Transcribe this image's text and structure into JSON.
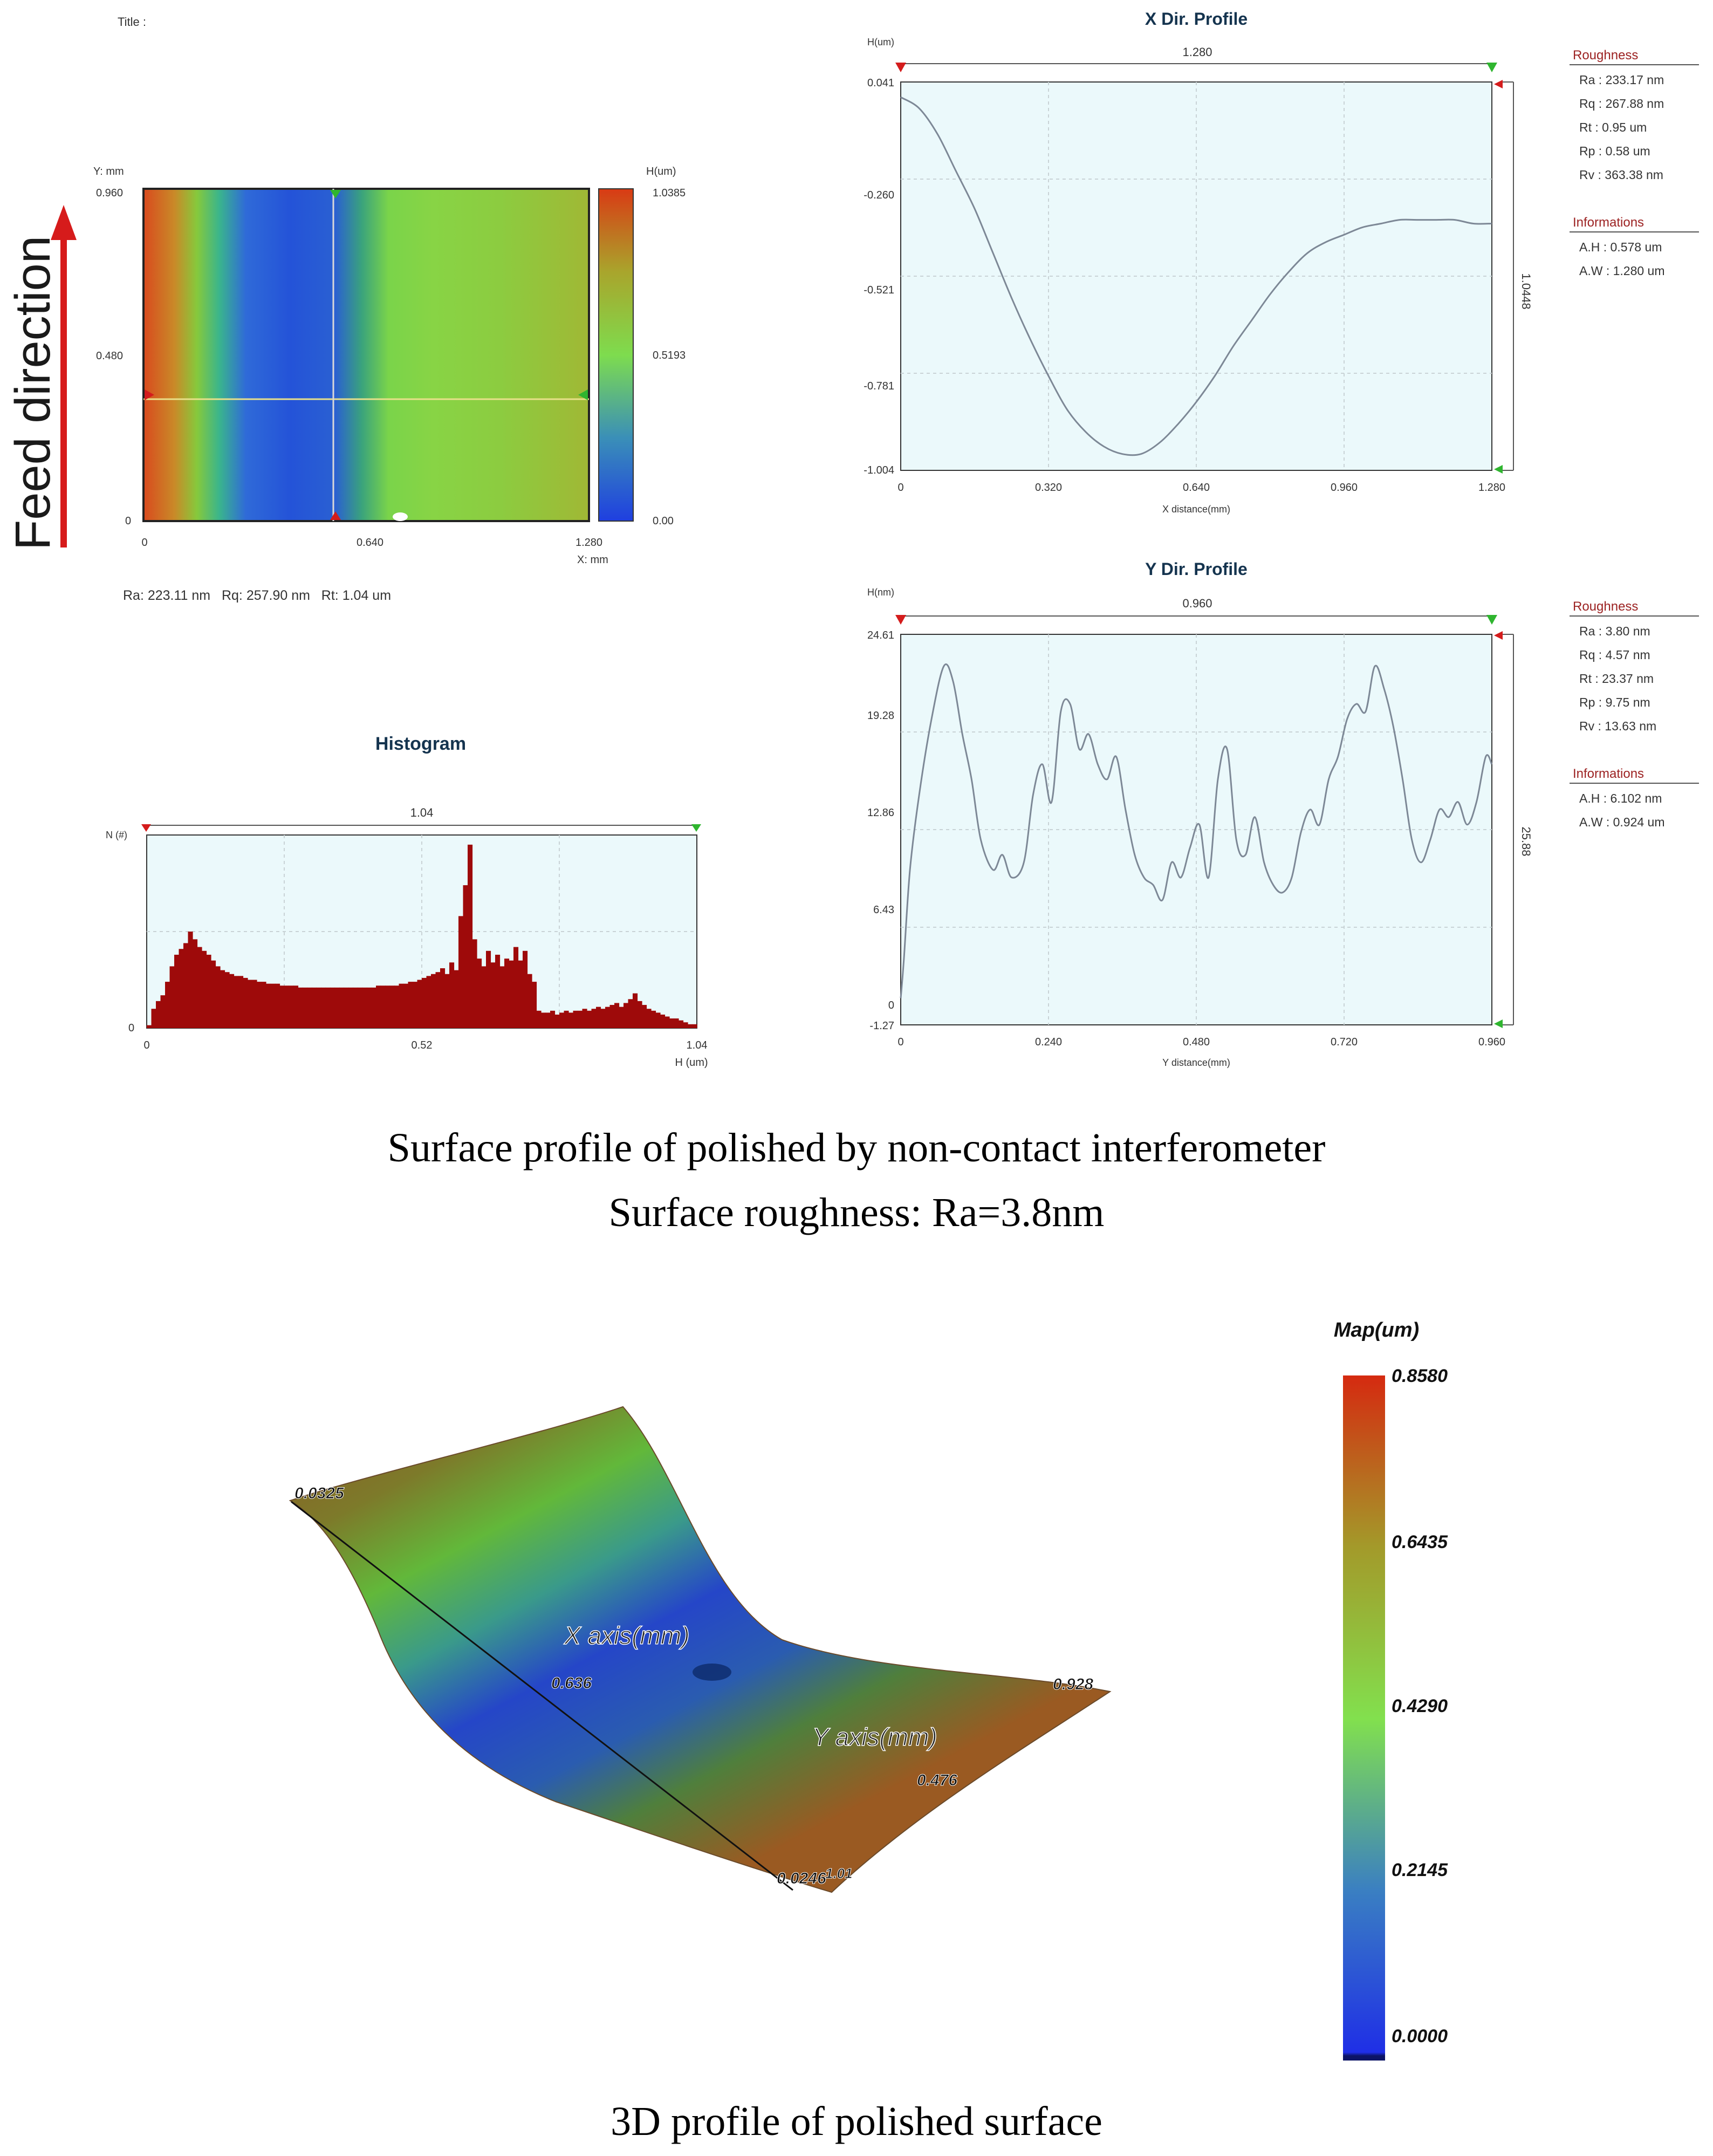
{
  "colors": {
    "plot_bg": "#ebf9fb",
    "grid": "#c9d3d6",
    "line": "#7d8896",
    "hist_bar": "#9e0a0a",
    "roughness_header": "#9c2222",
    "info_header": "#9c2222",
    "panel_title": "#15344f",
    "arrow_red": "#d61b1b",
    "marker_green": "#2fb52f",
    "marker_red": "#d41c1c"
  },
  "top_panel": {
    "title_label": "Title :",
    "feed_direction": "Feed direction",
    "surface_map": {
      "y_axis_label": "Y: mm",
      "x_axis_label": "X: mm",
      "y_ticks": [
        "0.960",
        "0.480",
        "0"
      ],
      "x_ticks": [
        "0",
        "0.640",
        "1.280"
      ],
      "colorbar_label": "H(um)",
      "colorbar_ticks": [
        "1.0385",
        "0.5193",
        "0.00"
      ],
      "stats": "Ra: 223.11 nm   Rq: 257.90 nm   Rt: 1.04 um"
    }
  },
  "histogram": {
    "title": "Histogram",
    "range_label": "1.04",
    "y_label": "N (#)",
    "y_zero": "0",
    "x_ticks": [
      "0",
      "0.52",
      "1.04"
    ],
    "x_label": "H (um)"
  },
  "x_profile": {
    "title": "X Dir. Profile",
    "unit_label": "H(um)",
    "range_label": "1.280",
    "side_label": "1.0448",
    "y_ticks": [
      "0.041",
      "-0.260",
      "-0.521",
      "-0.781",
      "-1.004"
    ],
    "x_ticks": [
      "0",
      "0.320",
      "0.640",
      "0.960",
      "1.280"
    ],
    "x_label": "X distance(mm)",
    "roughness_header": "Roughness",
    "roughness": [
      "Ra : 233.17 nm",
      "Rq : 267.88 nm",
      "Rt : 0.95 um",
      "Rp : 0.58 um",
      "Rv : 363.38 nm"
    ],
    "info_header": "Informations",
    "info": [
      "A.H : 0.578 um",
      "A.W : 1.280 um"
    ]
  },
  "y_profile": {
    "title": "Y Dir. Profile",
    "unit_label": "H(nm)",
    "range_label": "0.960",
    "side_label": "25.88",
    "y_ticks": [
      "24.61",
      "19.28",
      "12.86",
      "6.43",
      "0",
      "-1.27"
    ],
    "x_ticks": [
      "0",
      "0.240",
      "0.480",
      "0.720",
      "0.960"
    ],
    "x_label": "Y distance(mm)",
    "roughness_header": "Roughness",
    "roughness": [
      "Ra : 3.80 nm",
      "Rq : 4.57 nm",
      "Rt : 23.37 nm",
      "Rp : 9.75 nm",
      "Rv : 13.63 nm"
    ],
    "info_header": "Informations",
    "info": [
      "A.H : 6.102 nm",
      "A.W : 0.924 um"
    ]
  },
  "captions": {
    "line1": "Surface profile of polished by non-contact interferometer",
    "line2": "Surface roughness: Ra=3.8nm",
    "bottom": "3D profile of polished surface"
  },
  "map3d": {
    "legend_title": "Map(um)",
    "legend_ticks": [
      "0.8580",
      "0.6435",
      "0.4290",
      "0.2145",
      "0.0000"
    ],
    "x_axis_title": "X axis(mm)",
    "y_axis_title": "Y axis(mm)",
    "label_corner_left": "0.0325",
    "label_x_mid": "0.636",
    "label_corner_bottom": "0.0246",
    "label_corner_bottom_overlap": "1.01",
    "label_y_mid": "0.476",
    "label_corner_right": "0.928"
  },
  "chart_data": [
    {
      "type": "line",
      "title": "X Dir. Profile",
      "xlabel": "X distance(mm)",
      "ylabel": "H(um)",
      "xlim": [
        0,
        1.28
      ],
      "ylim": [
        -1.004,
        0.041
      ],
      "x": [
        0,
        0.04,
        0.08,
        0.12,
        0.16,
        0.2,
        0.24,
        0.28,
        0.32,
        0.36,
        0.4,
        0.44,
        0.48,
        0.52,
        0.56,
        0.6,
        0.64,
        0.68,
        0.72,
        0.76,
        0.8,
        0.84,
        0.88,
        0.92,
        0.96,
        1.0,
        1.04,
        1.08,
        1.12,
        1.16,
        1.2,
        1.24,
        1.28
      ],
      "values": [
        0.0,
        -0.03,
        -0.1,
        -0.2,
        -0.3,
        -0.42,
        -0.54,
        -0.65,
        -0.75,
        -0.84,
        -0.9,
        -0.94,
        -0.96,
        -0.96,
        -0.93,
        -0.88,
        -0.82,
        -0.75,
        -0.67,
        -0.6,
        -0.53,
        -0.47,
        -0.42,
        -0.39,
        -0.37,
        -0.35,
        -0.34,
        -0.33,
        -0.33,
        -0.33,
        -0.33,
        -0.34,
        -0.34
      ]
    },
    {
      "type": "line",
      "title": "Y Dir. Profile",
      "xlabel": "Y distance(mm)",
      "ylabel": "H(nm)",
      "xlim": [
        0,
        0.96
      ],
      "ylim": [
        -1.27,
        24.61
      ],
      "x": [
        0,
        0.005,
        0.015,
        0.03,
        0.05,
        0.07,
        0.085,
        0.1,
        0.115,
        0.13,
        0.15,
        0.165,
        0.18,
        0.2,
        0.215,
        0.23,
        0.245,
        0.26,
        0.275,
        0.29,
        0.305,
        0.32,
        0.335,
        0.35,
        0.365,
        0.38,
        0.395,
        0.41,
        0.425,
        0.44,
        0.455,
        0.47,
        0.485,
        0.5,
        0.515,
        0.53,
        0.545,
        0.56,
        0.575,
        0.59,
        0.605,
        0.62,
        0.635,
        0.65,
        0.665,
        0.68,
        0.695,
        0.71,
        0.725,
        0.74,
        0.755,
        0.77,
        0.785,
        0.8,
        0.815,
        0.83,
        0.845,
        0.86,
        0.875,
        0.89,
        0.905,
        0.92,
        0.935,
        0.95,
        0.96
      ],
      "values": [
        0.5,
        3.0,
        9.0,
        14.0,
        19.0,
        22.5,
        21.5,
        18.0,
        15.0,
        11.0,
        9.0,
        10.0,
        8.5,
        9.5,
        14.0,
        16.0,
        13.5,
        19.5,
        20.0,
        17.0,
        18.0,
        16.0,
        15.0,
        16.5,
        13.0,
        10.0,
        8.5,
        8.0,
        7.0,
        9.5,
        8.5,
        10.5,
        12.0,
        8.5,
        15.0,
        17.0,
        11.0,
        10.0,
        12.5,
        9.5,
        8.0,
        7.5,
        8.5,
        11.5,
        13.0,
        12.0,
        15.0,
        16.5,
        19.0,
        20.0,
        19.5,
        22.5,
        21.0,
        18.5,
        15.0,
        11.0,
        9.5,
        11.0,
        13.0,
        12.5,
        13.5,
        12.0,
        13.5,
        16.5,
        16.0
      ]
    },
    {
      "type": "bar",
      "title": "Histogram",
      "xlabel": "H (um)",
      "ylabel": "N (#)",
      "xlim": [
        0,
        1.04
      ],
      "bins": 120,
      "values": [
        1.5,
        10,
        14,
        17,
        24,
        32,
        38,
        41,
        44,
        50,
        46,
        42,
        40,
        38,
        35,
        32,
        30,
        29,
        28,
        27,
        27,
        26,
        25,
        25,
        24,
        24,
        23,
        23,
        23,
        22,
        22,
        22,
        22,
        21,
        21,
        21,
        21,
        21,
        21,
        21,
        21,
        21,
        21,
        21,
        21,
        21,
        21,
        21,
        21,
        21,
        22,
        22,
        22,
        22,
        22,
        23,
        23,
        24,
        24,
        25,
        26,
        27,
        28,
        29,
        31,
        28,
        34,
        30,
        58,
        74,
        95,
        46,
        36,
        32,
        40,
        34,
        38,
        32,
        36,
        35,
        42,
        35,
        40,
        28,
        24,
        9,
        8,
        8,
        9,
        7,
        8,
        9,
        8,
        9,
        9,
        10,
        9,
        10,
        11,
        10,
        11,
        12,
        13,
        11,
        13,
        15,
        18,
        14,
        12,
        10,
        9,
        8,
        7,
        6,
        5,
        5,
        4,
        3,
        2,
        2
      ],
      "ylim": [
        0,
        100
      ]
    }
  ]
}
